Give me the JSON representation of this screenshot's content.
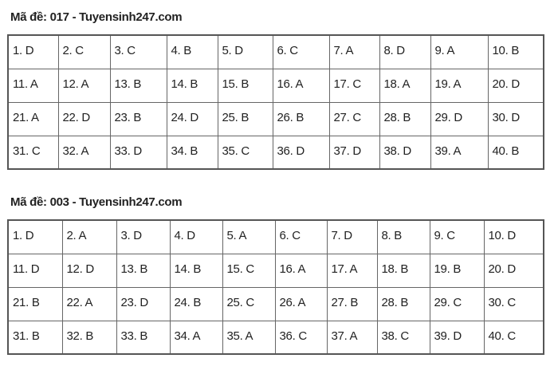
{
  "sections": [
    {
      "title": "Mã đề: 017 - Tuyensinh247.com",
      "answers": [
        "1. D",
        "2. C",
        "3. C",
        "4. B",
        "5. D",
        "6. C",
        "7. A",
        "8. D",
        "9. A",
        "10. B",
        "11. A",
        "12. A",
        "13. B",
        "14. B",
        "15. B",
        "16. A",
        "17. C",
        "18. A",
        "19. A",
        "20. D",
        "21. A",
        "22. D",
        "23. B",
        "24. D",
        "25. B",
        "26. B",
        "27. C",
        "28. B",
        "29. D",
        "30. D",
        "31. C",
        "32. A",
        "33. D",
        "34. B",
        "35. C",
        "36. D",
        "37. D",
        "38. D",
        "39. A",
        "40. B"
      ]
    },
    {
      "title": "Mã đề: 003 - Tuyensinh247.com",
      "answers": [
        "1. D",
        "2. A",
        "3. D",
        "4. D",
        "5. A",
        "6. C",
        "7. D",
        "8. B",
        "9. C",
        "10. D",
        "11. D",
        "12. D",
        "13. B",
        "14. B",
        "15. C",
        "16. A",
        "17. A",
        "18. B",
        "19. B",
        "20. D",
        "21. B",
        "22. A",
        "23. D",
        "24. B",
        "25. C",
        "26. A",
        "27. B",
        "28. B",
        "29. C",
        "30. C",
        "31. B",
        "32. B",
        "33. B",
        "34. A",
        "35. A",
        "36. C",
        "37. A",
        "38. C",
        "39. D",
        "40. C"
      ]
    }
  ]
}
